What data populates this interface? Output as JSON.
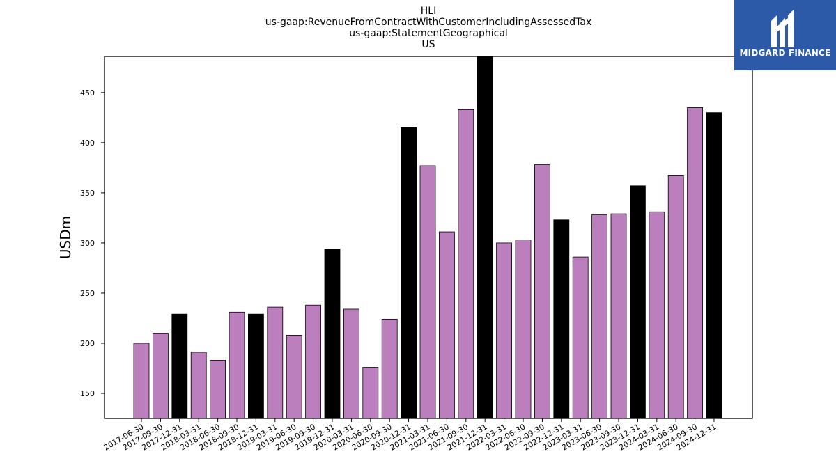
{
  "title_lines": [
    "HLI",
    "us-gaap:RevenueFromContractWithCustomerIncludingAssessedTax",
    "us-gaap:StatementGeographical",
    "US"
  ],
  "logo": {
    "text": "MIDGARD FINANCE",
    "bg_color": "#2d5aa8"
  },
  "chart_data": {
    "type": "bar",
    "ylabel": "USDm",
    "xlabel": "",
    "ylim": [
      125,
      486
    ],
    "yticks": [
      150,
      200,
      250,
      300,
      350,
      400,
      450
    ],
    "colors": {
      "normal": "#bb7fbd",
      "highlight": "#000000",
      "edge": "#000000"
    },
    "categories": [
      "2017-06-30",
      "2017-09-30",
      "2017-12-31",
      "2018-03-31",
      "2018-06-30",
      "2018-09-30",
      "2018-12-31",
      "2019-03-31",
      "2019-06-30",
      "2019-09-30",
      "2019-12-31",
      "2020-03-31",
      "2020-06-30",
      "2020-09-30",
      "2020-12-31",
      "2021-03-31",
      "2021-06-30",
      "2021-09-30",
      "2021-12-31",
      "2022-03-31",
      "2022-06-30",
      "2022-09-30",
      "2022-12-31",
      "2023-03-31",
      "2023-06-30",
      "2023-09-30",
      "2023-12-31",
      "2024-03-31",
      "2024-06-30",
      "2024-09-30",
      "2024-12-31"
    ],
    "values": [
      200,
      210,
      229,
      191,
      183,
      231,
      229,
      236,
      208,
      238,
      294,
      234,
      176,
      224,
      415,
      377,
      311,
      433,
      487,
      300,
      303,
      378,
      323,
      286,
      328,
      329,
      357,
      331,
      367,
      435,
      430
    ],
    "highlight": [
      false,
      false,
      true,
      false,
      false,
      false,
      true,
      false,
      false,
      false,
      true,
      false,
      false,
      false,
      true,
      false,
      false,
      false,
      true,
      false,
      false,
      false,
      true,
      false,
      false,
      false,
      true,
      false,
      false,
      false,
      true
    ]
  }
}
